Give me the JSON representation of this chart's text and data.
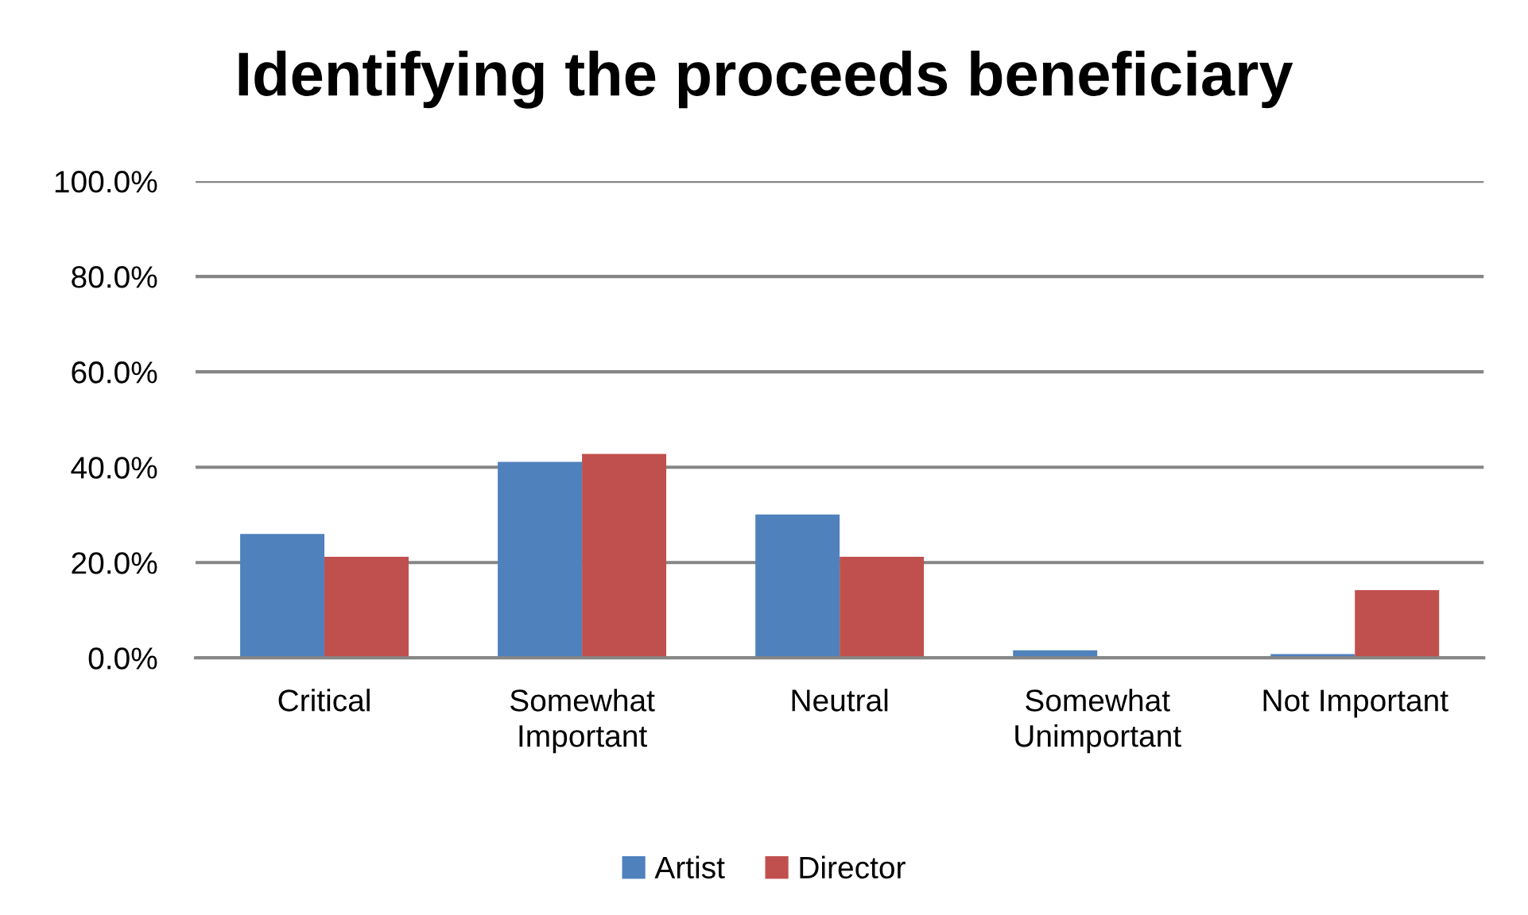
{
  "chart_data": {
    "type": "bar",
    "title": "Identifying the proceeds beneficiary",
    "categories": [
      "Critical",
      "Somewhat Important",
      "Neutral",
      "Somewhat Unimportant",
      "Not Important"
    ],
    "series": [
      {
        "name": "Artist",
        "color": "#4f81bd",
        "values": [
          26.0,
          41.1,
          30.1,
          1.6,
          0.8
        ]
      },
      {
        "name": "Director",
        "color": "#c0504d",
        "values": [
          21.2,
          42.8,
          21.2,
          0,
          14.2
        ]
      }
    ],
    "ylim": [
      0,
      100
    ],
    "yticks": [
      {
        "value": 0,
        "label": "0.0%"
      },
      {
        "value": 20,
        "label": "20.0%"
      },
      {
        "value": 40,
        "label": "40.0%"
      },
      {
        "value": 60,
        "label": "60.0%"
      },
      {
        "value": 80,
        "label": "80.0%"
      },
      {
        "value": 100,
        "label": "100.0%"
      }
    ],
    "grid": "y",
    "legend": "bottom"
  }
}
